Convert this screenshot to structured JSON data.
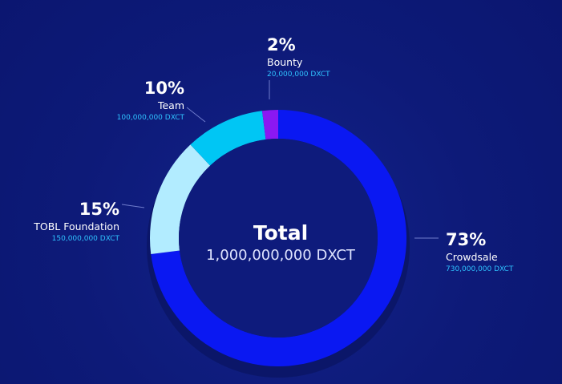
{
  "chart_data": {
    "type": "pie",
    "donut": true,
    "center": {
      "title": "Total",
      "value": "1,000,000,000 DXCT"
    },
    "slices": [
      {
        "name": "Crowdsale",
        "percent": 73,
        "percent_label": "73%",
        "amount": "730,000,000 DXCT",
        "color": "#0a18f2"
      },
      {
        "name": "TOBL Foundation",
        "percent": 15,
        "percent_label": "15%",
        "amount": "150,000,000 DXCT",
        "color": "#b2ecff"
      },
      {
        "name": "Team",
        "percent": 10,
        "percent_label": "10%",
        "amount": "100,000,000 DXCT",
        "color": "#00c6f4"
      },
      {
        "name": "Bounty",
        "percent": 2,
        "percent_label": "2%",
        "amount": "20,000,000 DXCT",
        "color": "#8b18f2"
      }
    ],
    "connector_color": "#6f7ccc"
  }
}
